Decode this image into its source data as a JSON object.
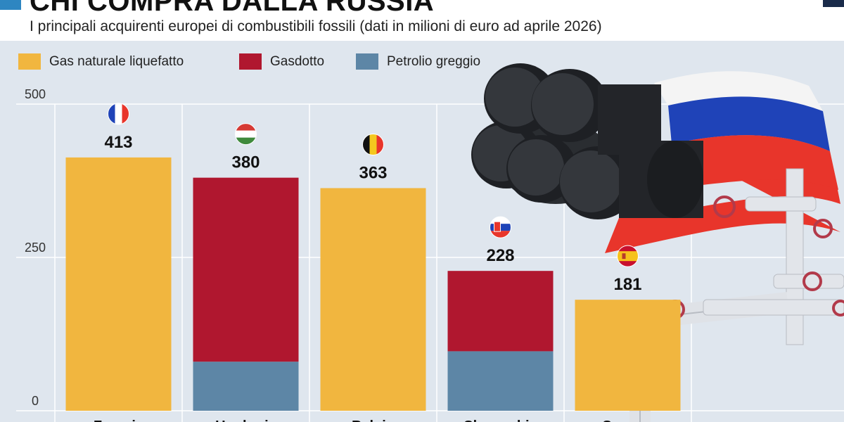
{
  "header": {
    "title": "CHI COMPRA DALLA RUSSIA",
    "subtitle": "I principali acquirenti europei di combustibili fossili (dati in milioni di euro ad aprile 2026)"
  },
  "colors": {
    "lng": "#f1b63f",
    "pipeline": "#b0172f",
    "oil": "#5d86a6",
    "background": "#dfe6ee"
  },
  "chart_data": {
    "type": "bar",
    "stacked": true,
    "title": "CHI COMPRA DALLA RUSSIA",
    "subtitle": "I principali acquirenti europei di combustibili fossili (dati in milioni di euro ad aprile 2026)",
    "categories": [
      "Francia",
      "Ungheria",
      "Belgio",
      "Slovacchia",
      "Spagna"
    ],
    "flags": [
      "flag-france-icon",
      "flag-hungary-icon",
      "flag-belgium-icon",
      "flag-slovakia-icon",
      "flag-spain-icon"
    ],
    "totals": [
      413,
      380,
      363,
      228,
      181
    ],
    "series": [
      {
        "name": "Gas naturale liquefatto",
        "color": "#f1b63f",
        "values": [
          413,
          0,
          363,
          0,
          181
        ]
      },
      {
        "name": "Gasdotto",
        "color": "#b0172f",
        "values": [
          0,
          300,
          0,
          131,
          0
        ]
      },
      {
        "name": "Petrolio greggio",
        "color": "#5d86a6",
        "values": [
          0,
          80,
          0,
          97,
          0
        ]
      }
    ],
    "stack_order": [
      "Petrolio greggio",
      "Gasdotto",
      "Gas naturale liquefatto"
    ],
    "yticks": [
      0,
      250,
      500
    ],
    "ylim": [
      0,
      500
    ],
    "grid": true,
    "legend_position": "top-left"
  }
}
